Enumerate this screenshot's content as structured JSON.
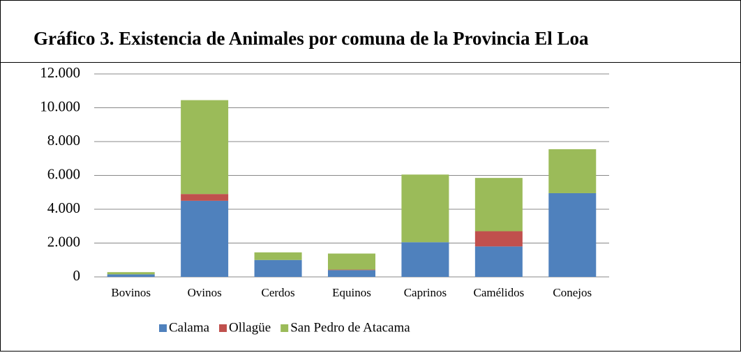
{
  "chart_data": {
    "type": "stacked_bar",
    "title": "Gráfico 3. Existencia de Animales por comuna de la Provincia El Loa",
    "categories": [
      "Bovinos",
      "Ovinos",
      "Cerdos",
      "Equinos",
      "Caprinos",
      "Camélidos",
      "Conejos"
    ],
    "series": [
      {
        "name": "Calama",
        "color": "#4f81bd",
        "values": [
          150,
          4500,
          1000,
          400,
          2050,
          1800,
          4950
        ]
      },
      {
        "name": "Ollagüe",
        "color": "#c0504d",
        "values": [
          0,
          400,
          0,
          30,
          0,
          900,
          0
        ]
      },
      {
        "name": "San Pedro de Atacama",
        "color": "#9bbb59",
        "values": [
          130,
          5550,
          450,
          950,
          4000,
          3150,
          2600
        ]
      }
    ],
    "ylim": [
      0,
      12000
    ],
    "yticks": [
      0,
      {
        "value": 2000,
        "label": "2.000"
      },
      {
        "value": 4000,
        "label": "4.000"
      },
      {
        "value": 6000,
        "label": "6.000"
      },
      {
        "value": 8000,
        "label": "8.000"
      },
      {
        "value": 10000,
        "label": "10.000"
      },
      {
        "value": 12000,
        "label": "12.000"
      }
    ],
    "grid": true
  }
}
